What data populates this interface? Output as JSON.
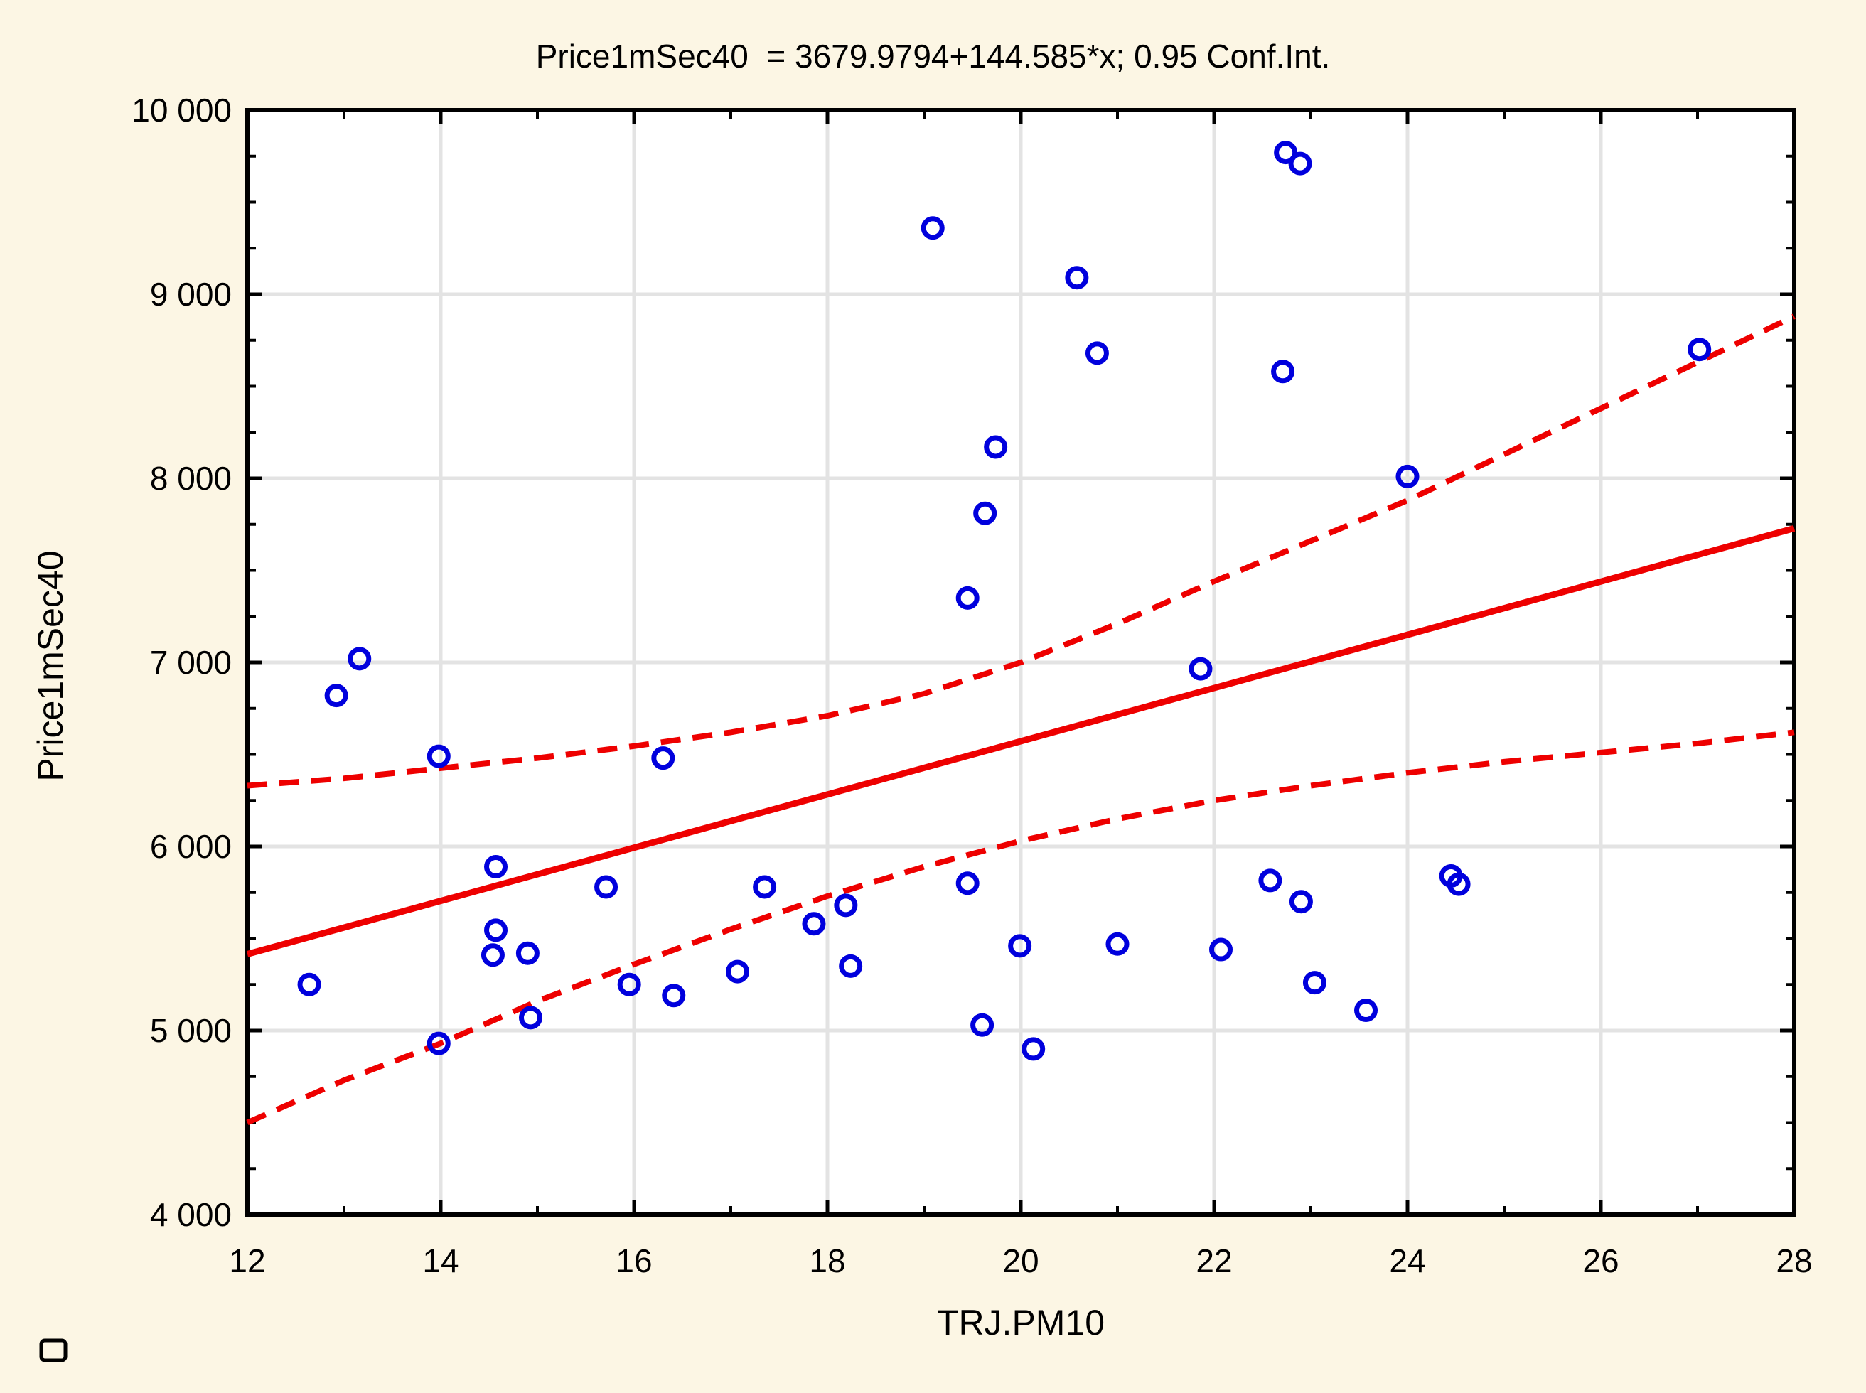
{
  "window": {
    "background_color": "#fcf6e4"
  },
  "chart_data": {
    "type": "scatter",
    "title": "Price1mSec40  = 3679.9794+144.585*x; 0.95 Conf.Int.",
    "xlabel": "TRJ.PM10",
    "ylabel": "Price1mSec40",
    "xlim": [
      12,
      28
    ],
    "ylim": [
      4000,
      10000
    ],
    "grid": true,
    "x_major_ticks": [
      12,
      14,
      16,
      18,
      20,
      22,
      24,
      26,
      28
    ],
    "x_tick_labels": [
      "12",
      "14",
      "16",
      "18",
      "20",
      "22",
      "24",
      "26",
      "28"
    ],
    "x_minor_ticks": [
      13,
      15,
      17,
      19,
      21,
      23,
      25,
      27
    ],
    "y_major_ticks": [
      4000,
      5000,
      6000,
      7000,
      8000,
      9000,
      10000
    ],
    "y_tick_labels": [
      "4 000",
      "5 000",
      "6 000",
      "7 000",
      "8 000",
      "9 000",
      "10 000"
    ],
    "y_minor_step": 250,
    "points": [
      [
        12.64,
        5250
      ],
      [
        12.92,
        6820
      ],
      [
        13.16,
        7020
      ],
      [
        13.98,
        6490
      ],
      [
        13.98,
        4930
      ],
      [
        14.54,
        5410
      ],
      [
        14.57,
        5890
      ],
      [
        14.57,
        5545
      ],
      [
        14.9,
        5420
      ],
      [
        14.93,
        5070
      ],
      [
        15.71,
        5780
      ],
      [
        15.95,
        5250
      ],
      [
        16.3,
        6480
      ],
      [
        16.41,
        5190
      ],
      [
        17.07,
        5320
      ],
      [
        17.35,
        5780
      ],
      [
        17.86,
        5580
      ],
      [
        18.19,
        5680
      ],
      [
        18.24,
        5350
      ],
      [
        19.09,
        9360
      ],
      [
        19.45,
        7350
      ],
      [
        19.45,
        5800
      ],
      [
        19.6,
        5030
      ],
      [
        19.63,
        7810
      ],
      [
        19.74,
        8170
      ],
      [
        19.99,
        5460
      ],
      [
        20.13,
        4900
      ],
      [
        20.58,
        9090
      ],
      [
        20.79,
        8680
      ],
      [
        21.0,
        5470
      ],
      [
        21.86,
        6965
      ],
      [
        22.07,
        5440
      ],
      [
        22.58,
        5815
      ],
      [
        22.71,
        8580
      ],
      [
        22.74,
        9770
      ],
      [
        22.89,
        9710
      ],
      [
        22.9,
        5700
      ],
      [
        23.04,
        5260
      ],
      [
        23.57,
        5110
      ],
      [
        24.0,
        8010
      ],
      [
        24.45,
        5840
      ],
      [
        24.53,
        5795
      ],
      [
        27.02,
        8700
      ]
    ],
    "regression": {
      "intercept": 3679.9794,
      "slope": 144.585,
      "x_range": [
        12,
        28
      ]
    },
    "confidence_level": 0.95,
    "confidence_band": {
      "upper": [
        [
          12,
          6330
        ],
        [
          13,
          6370
        ],
        [
          14,
          6425
        ],
        [
          15,
          6480
        ],
        [
          16,
          6545
        ],
        [
          17,
          6620
        ],
        [
          18,
          6710
        ],
        [
          19,
          6830
        ],
        [
          20,
          7000
        ],
        [
          21,
          7210
        ],
        [
          22,
          7440
        ],
        [
          23,
          7660
        ],
        [
          24,
          7880
        ],
        [
          25,
          8130
        ],
        [
          26,
          8380
        ],
        [
          27,
          8630
        ],
        [
          28,
          8880
        ]
      ],
      "lower": [
        [
          12,
          4500
        ],
        [
          13,
          4730
        ],
        [
          14,
          4930
        ],
        [
          15,
          5160
        ],
        [
          16,
          5360
        ],
        [
          17,
          5550
        ],
        [
          18,
          5730
        ],
        [
          19,
          5890
        ],
        [
          20,
          6030
        ],
        [
          21,
          6150
        ],
        [
          22,
          6250
        ],
        [
          23,
          6330
        ],
        [
          24,
          6400
        ],
        [
          25,
          6460
        ],
        [
          26,
          6510
        ],
        [
          27,
          6560
        ],
        [
          28,
          6620
        ]
      ]
    },
    "colors": {
      "point": "#0000dd",
      "regression_line": "#ee0000",
      "confidence_band": "#ee0000",
      "gridline": "#e3e3e3",
      "axis": "#000000",
      "plot_background": "#ffffff",
      "text": "#000000"
    }
  },
  "icons": {
    "corner_marker": "small-square-outline"
  }
}
